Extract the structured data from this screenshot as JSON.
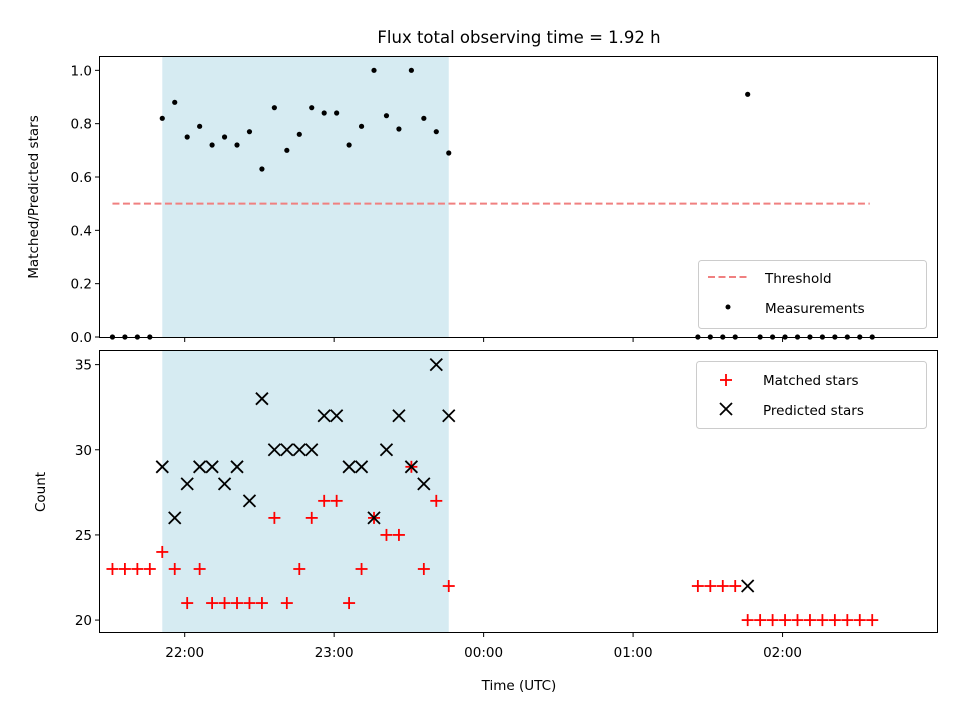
{
  "chart_data": [
    {
      "type": "scatter",
      "title": "Flux total observing time = 1.92 h",
      "ylabel": "Matched/Predicted stars",
      "xlabel": "",
      "xlim": [
        "21:26",
        "03:02"
      ],
      "ylim": [
        0,
        1.05
      ],
      "yticks": [
        "0.0",
        "0.2",
        "0.4",
        "0.6",
        "0.8",
        "1.0"
      ],
      "observing_window": [
        "21:51",
        "23:46"
      ],
      "threshold": {
        "name": "Threshold",
        "y": 0.5,
        "x": [
          "21:31",
          "02:35"
        ],
        "color": "#f08080"
      },
      "legend_position": "lower-right",
      "series": [
        {
          "name": "Measurements",
          "color": "#000000",
          "points": [
            [
              "21:31",
              0.0
            ],
            [
              "21:36",
              0.0
            ],
            [
              "21:41",
              0.0
            ],
            [
              "21:46",
              0.0
            ],
            [
              "21:51",
              0.82
            ],
            [
              "21:56",
              0.88
            ],
            [
              "22:01",
              0.75
            ],
            [
              "22:06",
              0.79
            ],
            [
              "22:11",
              0.72
            ],
            [
              "22:16",
              0.75
            ],
            [
              "22:21",
              0.72
            ],
            [
              "22:26",
              0.77
            ],
            [
              "22:31",
              0.63
            ],
            [
              "22:36",
              0.86
            ],
            [
              "22:41",
              0.7
            ],
            [
              "22:46",
              0.76
            ],
            [
              "22:51",
              0.86
            ],
            [
              "22:56",
              0.84
            ],
            [
              "23:01",
              0.84
            ],
            [
              "23:06",
              0.72
            ],
            [
              "23:11",
              0.79
            ],
            [
              "23:16",
              1.0
            ],
            [
              "23:21",
              0.83
            ],
            [
              "23:26",
              0.78
            ],
            [
              "23:31",
              1.0
            ],
            [
              "23:36",
              0.82
            ],
            [
              "23:41",
              0.77
            ],
            [
              "23:46",
              0.69
            ],
            [
              "01:26",
              0.0
            ],
            [
              "01:31",
              0.0
            ],
            [
              "01:36",
              0.0
            ],
            [
              "01:41",
              0.0
            ],
            [
              "01:46",
              0.91
            ],
            [
              "01:51",
              0.0
            ],
            [
              "01:56",
              0.0
            ],
            [
              "02:01",
              0.0
            ],
            [
              "02:06",
              0.0
            ],
            [
              "02:11",
              0.0
            ],
            [
              "02:16",
              0.0
            ],
            [
              "02:21",
              0.0
            ],
            [
              "02:26",
              0.0
            ],
            [
              "02:31",
              0.0
            ],
            [
              "02:36",
              0.0
            ]
          ]
        }
      ]
    },
    {
      "type": "scatter",
      "title": "",
      "ylabel": "Count",
      "xlabel": "Time (UTC)",
      "xlim": [
        "21:26",
        "03:02"
      ],
      "ylim": [
        19.3,
        35.8
      ],
      "yticks": [
        "20",
        "25",
        "30",
        "35"
      ],
      "xticks": [
        "22:00",
        "23:00",
        "00:00",
        "01:00",
        "02:00"
      ],
      "observing_window": [
        "21:51",
        "23:46"
      ],
      "legend_position": "upper-right",
      "series": [
        {
          "name": "Matched stars",
          "color": "#ff0000",
          "marker": "plus",
          "points": [
            [
              "21:31",
              23
            ],
            [
              "21:36",
              23
            ],
            [
              "21:41",
              23
            ],
            [
              "21:46",
              23
            ],
            [
              "21:51",
              24
            ],
            [
              "21:56",
              23
            ],
            [
              "22:01",
              21
            ],
            [
              "22:06",
              23
            ],
            [
              "22:11",
              21
            ],
            [
              "22:16",
              21
            ],
            [
              "22:21",
              21
            ],
            [
              "22:26",
              21
            ],
            [
              "22:31",
              21
            ],
            [
              "22:36",
              26
            ],
            [
              "22:41",
              21
            ],
            [
              "22:46",
              23
            ],
            [
              "22:51",
              26
            ],
            [
              "22:56",
              27
            ],
            [
              "23:01",
              27
            ],
            [
              "23:06",
              21
            ],
            [
              "23:11",
              23
            ],
            [
              "23:16",
              26
            ],
            [
              "23:21",
              25
            ],
            [
              "23:26",
              25
            ],
            [
              "23:31",
              29
            ],
            [
              "23:36",
              23
            ],
            [
              "23:41",
              27
            ],
            [
              "23:46",
              22
            ],
            [
              "01:26",
              22
            ],
            [
              "01:31",
              22
            ],
            [
              "01:36",
              22
            ],
            [
              "01:41",
              22
            ],
            [
              "01:46",
              20
            ],
            [
              "01:51",
              20
            ],
            [
              "01:56",
              20
            ],
            [
              "02:01",
              20
            ],
            [
              "02:06",
              20
            ],
            [
              "02:11",
              20
            ],
            [
              "02:16",
              20
            ],
            [
              "02:21",
              20
            ],
            [
              "02:26",
              20
            ],
            [
              "02:31",
              20
            ],
            [
              "02:36",
              20
            ]
          ]
        },
        {
          "name": "Predicted stars",
          "color": "#000000",
          "marker": "x",
          "points": [
            [
              "21:51",
              29
            ],
            [
              "21:56",
              26
            ],
            [
              "22:01",
              28
            ],
            [
              "22:06",
              29
            ],
            [
              "22:11",
              29
            ],
            [
              "22:16",
              28
            ],
            [
              "22:21",
              29
            ],
            [
              "22:26",
              27
            ],
            [
              "22:31",
              33
            ],
            [
              "22:36",
              30
            ],
            [
              "22:41",
              30
            ],
            [
              "22:46",
              30
            ],
            [
              "22:51",
              30
            ],
            [
              "22:56",
              32
            ],
            [
              "23:01",
              32
            ],
            [
              "23:06",
              29
            ],
            [
              "23:11",
              29
            ],
            [
              "23:16",
              26
            ],
            [
              "23:21",
              30
            ],
            [
              "23:26",
              32
            ],
            [
              "23:31",
              29
            ],
            [
              "23:36",
              28
            ],
            [
              "23:41",
              35
            ],
            [
              "23:46",
              32
            ],
            [
              "01:46",
              22
            ]
          ]
        }
      ]
    }
  ]
}
